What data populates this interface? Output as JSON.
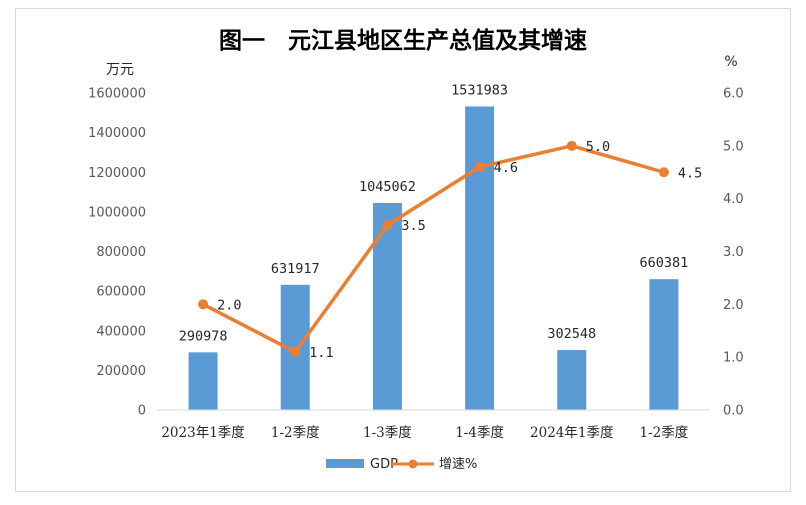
{
  "chart_data": {
    "type": "bar+line",
    "title": "图一　元江县地区生产总值及其增速",
    "y_left_unit": "万元",
    "y_right_unit": "%",
    "categories": [
      "2023年1季度",
      "1-2季度",
      "1-3季度",
      "1-4季度",
      "2024年1季度",
      "1-2季度"
    ],
    "series": [
      {
        "name": "GDP",
        "type": "bar",
        "axis": "left",
        "color": "#5b9bd5",
        "values": [
          290978,
          631917,
          1045062,
          1531983,
          302548,
          660381
        ],
        "labels": [
          "290978",
          "631917",
          "1045062",
          "1531983",
          "302548",
          "660381"
        ]
      },
      {
        "name": "增速%",
        "type": "line",
        "axis": "right",
        "color": "#ed7d31",
        "values": [
          2.0,
          1.1,
          3.5,
          4.6,
          5.0,
          4.5
        ],
        "labels": [
          "2.0",
          "1.1",
          "3.5",
          "4.6",
          "5.0",
          "4.5"
        ]
      }
    ],
    "y_left": {
      "min": 0,
      "max": 1600000,
      "ticks": [
        "0",
        "200000",
        "400000",
        "600000",
        "800000",
        "1000000",
        "1200000",
        "1400000",
        "1600000"
      ]
    },
    "y_right": {
      "min": 0,
      "max": 6,
      "ticks": [
        "0.0",
        "1.0",
        "2.0",
        "3.0",
        "4.0",
        "5.0",
        "6.0"
      ]
    },
    "legend": {
      "position": "bottom",
      "items": [
        "GDP",
        "增速%"
      ]
    }
  }
}
